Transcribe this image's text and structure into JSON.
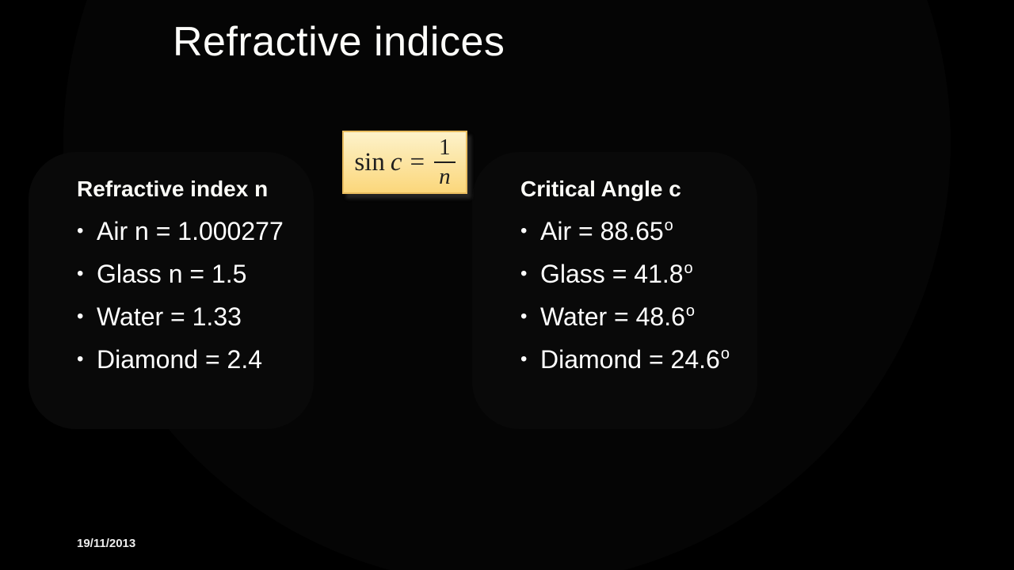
{
  "slide": {
    "title": "Refractive indices",
    "date": "19/11/2013",
    "bullet_char": "•",
    "formula": {
      "func": "sin",
      "variable": "c",
      "equals": "=",
      "numerator": "1",
      "denominator": "n"
    },
    "left_panel": {
      "heading": "Refractive index n",
      "items": [
        {
          "text": "Air n = 1.000277",
          "sup": ""
        },
        {
          "text": "Glass n = 1.5",
          "sup": ""
        },
        {
          "text": "Water = 1.33",
          "sup": ""
        },
        {
          "text": "Diamond = 2.4",
          "sup": ""
        }
      ]
    },
    "right_panel": {
      "heading": "Critical Angle c",
      "items": [
        {
          "text": "Air = 88.65",
          "sup": "o"
        },
        {
          "text": "Glass = 41.8",
          "sup": "o"
        },
        {
          "text": "Water = 48.6",
          "sup": "o"
        },
        {
          "text": "Diamond = 24.6",
          "sup": "o"
        }
      ]
    },
    "colors": {
      "background": "#000000",
      "text": "#ffffff",
      "formula_box_top": "#fdf2ca",
      "formula_box_bottom": "#fbd77b",
      "formula_box_border": "#e9bd60",
      "formula_text": "#1f1f1f"
    }
  }
}
